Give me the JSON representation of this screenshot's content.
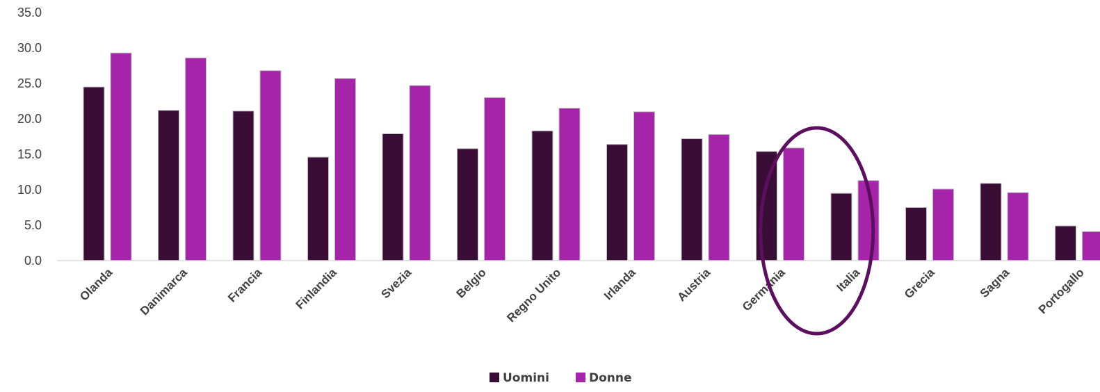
{
  "chart_data": {
    "type": "bar",
    "title": "",
    "xlabel": "",
    "ylabel": "",
    "ylim": [
      0,
      35
    ],
    "y_ticks": [
      "0.0",
      "5.0",
      "10.0",
      "15.0",
      "20.0",
      "25.0",
      "30.0",
      "35.0"
    ],
    "grid": false,
    "legend_position": "bottom",
    "highlight": {
      "type": "ellipse",
      "color": "#5c0f5f",
      "around_category_range": [
        "Germania",
        "Italia"
      ]
    },
    "categories": [
      "Olanda",
      "Danimarca",
      "Francia",
      "Finlandia",
      "Svezia",
      "Belgio",
      "Regno Unito",
      "Irlanda",
      "Austria",
      "Germania",
      "Italia",
      "Grecia",
      "Sagna",
      "Portogallo"
    ],
    "series": [
      {
        "name": "Uomini",
        "color": "#3a0d36",
        "values": [
          24.5,
          21.2,
          21.1,
          14.6,
          17.9,
          15.8,
          18.3,
          16.4,
          17.2,
          15.4,
          9.5,
          7.5,
          10.9,
          4.9
        ]
      },
      {
        "name": "Donne",
        "color": "#a624a9",
        "values": [
          29.3,
          28.6,
          26.8,
          25.7,
          24.7,
          23.0,
          21.5,
          21.0,
          17.8,
          15.9,
          11.3,
          10.1,
          9.6,
          4.1
        ]
      }
    ]
  }
}
